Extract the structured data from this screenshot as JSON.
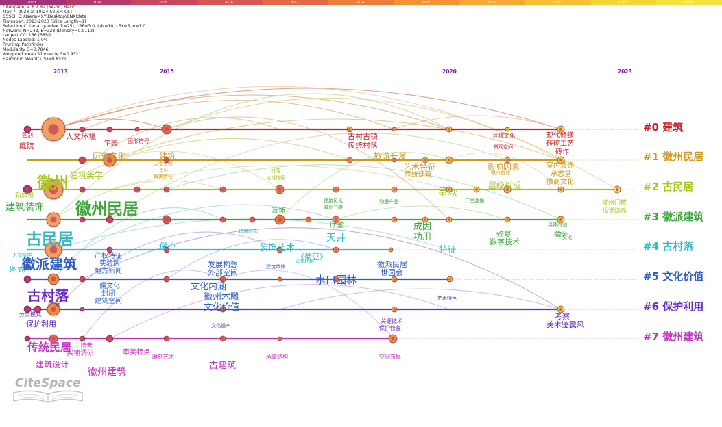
{
  "time_scale": {
    "years": [
      "2013",
      "2014",
      "2015",
      "2016",
      "2017",
      "2018",
      "2019",
      "2020",
      "2021",
      "2022",
      "2023"
    ],
    "colors": [
      "#a2327a",
      "#b53a6c",
      "#c8465e",
      "#d85650",
      "#e46844",
      "#ec7c3c",
      "#f29136",
      "#f5a834",
      "#f7bf33",
      "#f6d437",
      "#f1e43f"
    ]
  },
  "info_lines": [
    "CiteSpace, v. 6.2.R2 (64-bit) Basic",
    "May 7, 2023 at 10:24:52 AM CST",
    "CSSCI: C:\\Users\\MXY\\Desktop\\CNKIdata",
    "Timespan: 2013-2023 (Slice Length=1)",
    "Selection Criteria: g-index (k=25), LRF=3.0, L/N=10, LBY=5, e=1.0",
    "Network: N=243, E=328 (Density=0.0112)",
    "Largest CC: 166 (68%)",
    "Nodes Labeled: 1.0%",
    "Pruning: Pathfinder",
    "Modularity Q=0.7846",
    "Weighted Mean Silhouette S=0.9321",
    "Harmonic Mean(Q, S)=0.8521"
  ],
  "axis_years": [
    "2013",
    "2015",
    "2020",
    "2023"
  ],
  "clusters": [
    {
      "label": "#0 建筑",
      "color": "#c0262c"
    },
    {
      "label": "#1 徽州民居",
      "color": "#c99a1e"
    },
    {
      "label": "#2 古民居",
      "color": "#a8c41e"
    },
    {
      "label": "#3 徽派建筑",
      "color": "#3ea83a"
    },
    {
      "label": "#4 古村落",
      "color": "#31bac4"
    },
    {
      "label": "#5 文化价值",
      "color": "#2e5fc0"
    },
    {
      "label": "#6 保护利用",
      "color": "#6a2fc0"
    },
    {
      "label": "#7 徽州建筑",
      "color": "#c02fc0"
    }
  ],
  "keywords": [
    {
      "t": "区别",
      "c": 0
    },
    {
      "t": "庭院",
      "c": 0
    },
    {
      "t": "人文环境",
      "c": 0
    },
    {
      "t": "宅园",
      "c": 0
    },
    {
      "t": "图形符号",
      "c": 0
    },
    {
      "t": "古村古镇",
      "c": 0
    },
    {
      "t": "传统村落",
      "c": 0
    },
    {
      "t": "区域文化",
      "c": 0
    },
    {
      "t": "景观空间",
      "c": 0
    },
    {
      "t": "现代修缮",
      "c": 0
    },
    {
      "t": "砖砌工艺",
      "c": 0
    },
    {
      "t": "砖作",
      "c": 0
    },
    {
      "t": "历史文化",
      "c": 1
    },
    {
      "t": "建筑",
      "c": 1
    },
    {
      "t": "人文景观",
      "c": 1
    },
    {
      "t": "景区",
      "c": 1
    },
    {
      "t": "审美特征",
      "c": 1
    },
    {
      "t": "旅游开发",
      "c": 1
    },
    {
      "t": "艺术特征",
      "c": 1
    },
    {
      "t": "传统建筑",
      "c": 1
    },
    {
      "t": "影响因素",
      "c": 1
    },
    {
      "t": "徽州古城",
      "c": 1
    },
    {
      "t": "室内装饰",
      "c": 1
    },
    {
      "t": "承志堂",
      "c": 1
    },
    {
      "t": "徽商文化",
      "c": 1
    },
    {
      "t": "徽州",
      "c": 2
    },
    {
      "t": "新加坡",
      "c": 2
    },
    {
      "t": "建筑美学",
      "c": 2
    },
    {
      "t": "村落",
      "c": 2
    },
    {
      "t": "地域特征",
      "c": 2
    },
    {
      "t": "呈坎",
      "c": 2
    },
    {
      "t": "层级构成",
      "c": 2
    },
    {
      "t": "徽州门楼",
      "c": 2
    },
    {
      "t": "视觉隐喻",
      "c": 2
    },
    {
      "t": "建筑装饰",
      "c": 3
    },
    {
      "t": "徽州民居",
      "c": 3
    },
    {
      "t": "装饰",
      "c": 3
    },
    {
      "t": "建筑风水",
      "c": 3
    },
    {
      "t": "徽州三雕",
      "c": 3
    },
    {
      "t": "动漫产品",
      "c": 3
    },
    {
      "t": "厅堂装饰",
      "c": 3
    },
    {
      "t": "具体内涵",
      "c": 3
    },
    {
      "t": "厅堂",
      "c": 3
    },
    {
      "t": "成因",
      "c": 3
    },
    {
      "t": "功用",
      "c": 3
    },
    {
      "t": "修复",
      "c": 3
    },
    {
      "t": "数字技术",
      "c": 3
    },
    {
      "t": "徽州",
      "c": 3
    },
    {
      "t": "文化",
      "c": 3
    },
    {
      "t": "古民居",
      "c": 4
    },
    {
      "t": "建筑形态",
      "c": 4
    },
    {
      "t": "保护",
      "c": 4
    },
    {
      "t": "装饰艺术",
      "c": 4
    },
    {
      "t": "天井",
      "c": 4
    },
    {
      "t": "特征",
      "c": 4
    },
    {
      "t": "《菊豆》",
      "c": 4
    },
    {
      "t": "人文精神",
      "c": 4
    },
    {
      "t": "图式",
      "c": 4
    },
    {
      "t": "公共环境",
      "c": 4
    },
    {
      "t": "徽派建筑",
      "c": 5
    },
    {
      "t": "产权特征",
      "c": 5
    },
    {
      "t": "实验区",
      "c": 5
    },
    {
      "t": "地方新闻",
      "c": 5
    },
    {
      "t": "发展构想",
      "c": 5
    },
    {
      "t": "外部空间",
      "c": 5
    },
    {
      "t": "建筑单体",
      "c": 5
    },
    {
      "t": "徽派民居",
      "c": 5
    },
    {
      "t": "世园会",
      "c": 5
    },
    {
      "t": "水口园林",
      "c": 5
    },
    {
      "t": "儒文化",
      "c": 5
    },
    {
      "t": "封闭",
      "c": 5
    },
    {
      "t": "建筑空间",
      "c": 5
    },
    {
      "t": "文化内涵",
      "c": 5
    },
    {
      "t": "徽州木雕",
      "c": 5
    },
    {
      "t": "文化价值",
      "c": 5
    },
    {
      "t": "古村落",
      "c": 6
    },
    {
      "t": "中堂",
      "c": 6
    },
    {
      "t": "分类模式",
      "c": 6
    },
    {
      "t": "保护利用",
      "c": 6
    },
    {
      "t": "文化遗产",
      "c": 6
    },
    {
      "t": "关键技术",
      "c": 6
    },
    {
      "t": "保护修复",
      "c": 6
    },
    {
      "t": "艺术特色",
      "c": 6
    },
    {
      "t": "考察",
      "c": 6
    },
    {
      "t": "美术鉴赏",
      "c": 6
    },
    {
      "t": "民风",
      "c": 6
    },
    {
      "t": "传统民居",
      "c": 7
    },
    {
      "t": "主持者",
      "c": 7
    },
    {
      "t": "实地调研",
      "c": 7
    },
    {
      "t": "审美特点",
      "c": 7
    },
    {
      "t": "雕刻艺术",
      "c": 7
    },
    {
      "t": "建筑设计",
      "c": 7
    },
    {
      "t": "徽州建筑",
      "c": 7
    },
    {
      "t": "古建筑",
      "c": 7
    },
    {
      "t": "承重结构",
      "c": 7
    },
    {
      "t": "空间布局",
      "c": 7
    }
  ],
  "logo_text": "CiteSpace"
}
